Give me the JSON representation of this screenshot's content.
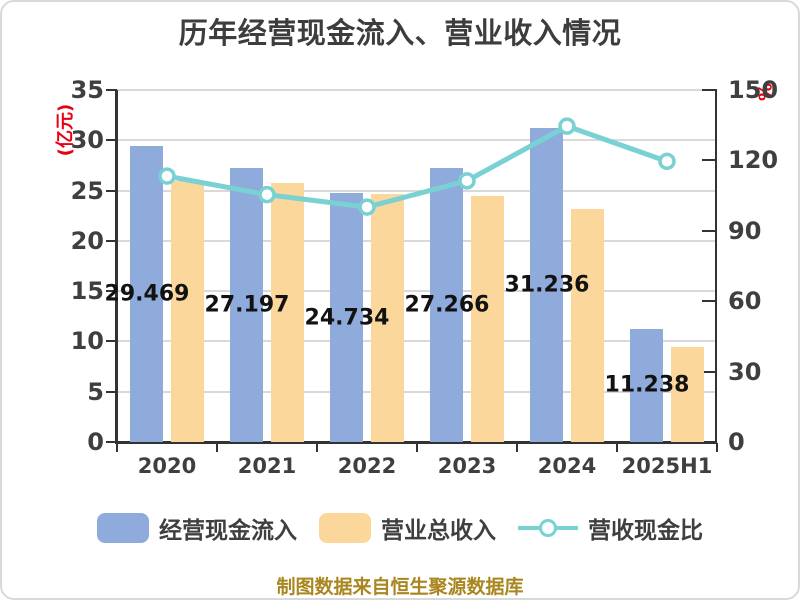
{
  "title": "历年经营现金流入、营业收入情况",
  "footer": "制图数据来自恒生聚源数据库",
  "chart_data": {
    "type": "bar+line",
    "title": "历年经营现金流入、营业收入情况",
    "categories": [
      "2020",
      "2021",
      "2022",
      "2023",
      "2024",
      "2025H1"
    ],
    "series": [
      {
        "name": "经营现金流入",
        "type": "bar",
        "axis": "left",
        "color": "#8FABDB",
        "values": [
          29.469,
          27.197,
          24.734,
          27.266,
          31.236,
          11.238
        ],
        "value_labels": [
          "29.469",
          "27.197",
          "24.734",
          "27.266",
          "31.236",
          "11.238"
        ],
        "show_labels": true
      },
      {
        "name": "营业总收入",
        "type": "bar",
        "axis": "left",
        "color": "#FBD79B",
        "values": [
          26.0,
          25.8,
          24.7,
          24.5,
          23.2,
          9.4
        ],
        "show_labels": false
      },
      {
        "name": "营收现金比",
        "type": "line",
        "axis": "right",
        "color": "#79D1D4",
        "marker_fill": "#FFFFFF",
        "values": [
          113.3,
          105.4,
          100.1,
          111.3,
          134.6,
          119.6
        ],
        "show_labels": false
      }
    ],
    "left_axis": {
      "label": "(亿元)",
      "label_color": "#E60012",
      "min": 0,
      "max": 35,
      "step": 5
    },
    "right_axis": {
      "label": "%",
      "label_color": "#E60012",
      "min": 0,
      "max": 150,
      "step": 30
    },
    "grid": true,
    "legend_position": "bottom"
  },
  "colors": {
    "bar_cash_inflow": "#8FABDB",
    "bar_revenue": "#FBD79B",
    "ratio_line": "#79D1D4",
    "axis_text": "#3f3f3f",
    "axis_unit_red": "#E60012",
    "footer_gold": "#a98620"
  }
}
